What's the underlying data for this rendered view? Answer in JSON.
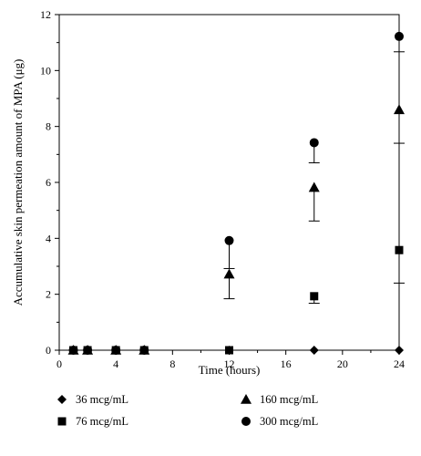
{
  "chart_data": {
    "type": "scatter",
    "xlabel": "Time (hours)",
    "ylabel": "Accumulative skin permeation amount of MPA (μg)",
    "xlim": [
      0,
      24
    ],
    "ylim": [
      0,
      12
    ],
    "x_ticks": [
      "0",
      "4",
      "8",
      "12",
      "16",
      "20",
      "24"
    ],
    "y_ticks": [
      "0",
      "2",
      "4",
      "6",
      "8",
      "10",
      "12"
    ],
    "grid": false,
    "legend_position": "bottom",
    "series": [
      {
        "name": "36 mcg/mL",
        "marker": "diamond",
        "points": [
          {
            "x": 1,
            "y": 0
          },
          {
            "x": 2,
            "y": 0
          },
          {
            "x": 4,
            "y": 0
          },
          {
            "x": 6,
            "y": 0
          },
          {
            "x": 12,
            "y": 0
          },
          {
            "x": 18,
            "y": 0
          },
          {
            "x": 24,
            "y": 0
          }
        ]
      },
      {
        "name": "76 mcg/mL",
        "marker": "square",
        "points": [
          {
            "x": 1,
            "y": 0
          },
          {
            "x": 2,
            "y": 0
          },
          {
            "x": 4,
            "y": 0
          },
          {
            "x": 6,
            "y": 0
          },
          {
            "x": 12,
            "y": 0
          },
          {
            "x": 18,
            "y": 1.93,
            "err_lo": 0.25
          },
          {
            "x": 24,
            "y": 3.58,
            "err_lo": 1.18
          }
        ]
      },
      {
        "name": "160 mcg/mL",
        "marker": "triangle",
        "points": [
          {
            "x": 1,
            "y": 0
          },
          {
            "x": 2,
            "y": 0
          },
          {
            "x": 4,
            "y": 0
          },
          {
            "x": 6,
            "y": 0
          },
          {
            "x": 12,
            "y": 2.72,
            "err_lo": 0.88
          },
          {
            "x": 18,
            "y": 5.82,
            "err_lo": 1.2
          },
          {
            "x": 24,
            "y": 8.6,
            "err_lo": 1.2
          }
        ]
      },
      {
        "name": "300 mcg/mL",
        "marker": "circle",
        "points": [
          {
            "x": 1,
            "y": 0
          },
          {
            "x": 2,
            "y": 0
          },
          {
            "x": 4,
            "y": 0
          },
          {
            "x": 6,
            "y": 0
          },
          {
            "x": 12,
            "y": 3.92,
            "err_lo": 1.0
          },
          {
            "x": 18,
            "y": 7.42,
            "err_lo": 0.72
          },
          {
            "x": 24,
            "y": 11.22,
            "err_lo": 0.55
          }
        ]
      }
    ],
    "colors": {
      "marks": "#000000",
      "background": "#ffffff"
    }
  }
}
